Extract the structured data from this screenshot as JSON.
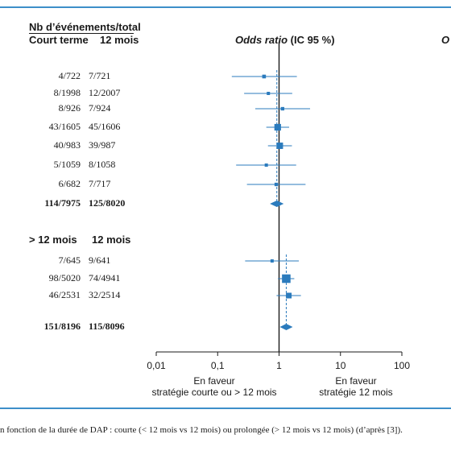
{
  "header": {
    "group_title": "Nb d’événements/total",
    "col_short": "Court terme",
    "col_long": "12 mois",
    "or_label": "Odds ratio",
    "ci_label": "(IC 95 %)",
    "right_cut": "O"
  },
  "subgroup2": {
    "col_short": "> 12 mois",
    "col_long": "12 mois"
  },
  "favor_left": [
    "En faveur",
    "stratégie courte ou > 12 mois"
  ],
  "favor_right": [
    "En faveur",
    "stratégie  12 mois"
  ],
  "caption": "n fonction de la durée de DAP : courte (< 12 mois vs 12 mois) ou prolongée (> 12 mois vs 12 mois) (d’après [3]).",
  "colors": {
    "accent": "#2b7bbd",
    "frame": "#3d8fc9"
  },
  "chart_data": {
    "type": "forest",
    "x_scale": "log",
    "xlim": [
      0.01,
      100
    ],
    "x_ticks": [
      "0,01",
      "0,1",
      "1",
      "10",
      "100"
    ],
    "x_tick_values": [
      0.01,
      0.1,
      1,
      10,
      100
    ],
    "reference_line": 1,
    "rows": [
      {
        "group": 1,
        "short": "4/722",
        "long": "7/721",
        "or": 0.57,
        "lo": 0.17,
        "hi": 1.95,
        "kind": "study"
      },
      {
        "group": 1,
        "short": "8/1998",
        "long": "12/2007",
        "or": 0.67,
        "lo": 0.27,
        "hi": 1.64,
        "kind": "study"
      },
      {
        "group": 1,
        "short": "8/926",
        "long": "7/924",
        "or": 1.14,
        "lo": 0.41,
        "hi": 3.2,
        "kind": "study"
      },
      {
        "group": 1,
        "short": "43/1605",
        "long": "45/1606",
        "or": 0.95,
        "lo": 0.62,
        "hi": 1.46,
        "kind": "study"
      },
      {
        "group": 1,
        "short": "40/983",
        "long": "39/987",
        "or": 1.03,
        "lo": 0.66,
        "hi": 1.62,
        "kind": "study"
      },
      {
        "group": 1,
        "short": "5/1059",
        "long": "8/1058",
        "or": 0.62,
        "lo": 0.2,
        "hi": 1.9,
        "kind": "study"
      },
      {
        "group": 1,
        "short": "6/682",
        "long": "7/717",
        "or": 0.9,
        "lo": 0.3,
        "hi": 2.7,
        "kind": "study"
      },
      {
        "group": 1,
        "short": "114/7975",
        "long": "125/8020",
        "or": 0.92,
        "lo": 0.71,
        "hi": 1.19,
        "kind": "summary"
      },
      {
        "group": 2,
        "short": "7/645",
        "long": "9/641",
        "or": 0.77,
        "lo": 0.28,
        "hi": 2.1,
        "kind": "study"
      },
      {
        "group": 2,
        "short": "98/5020",
        "long": "74/4941",
        "or": 1.31,
        "lo": 0.96,
        "hi": 1.77,
        "kind": "study"
      },
      {
        "group": 2,
        "short": "46/2531",
        "long": "32/2514",
        "or": 1.44,
        "lo": 0.91,
        "hi": 2.27,
        "kind": "study"
      },
      {
        "group": 2,
        "short": "151/8196",
        "long": "115/8096",
        "or": 1.31,
        "lo": 1.03,
        "hi": 1.67,
        "kind": "summary"
      }
    ],
    "pooled_or": [
      0.92,
      1.31
    ],
    "marker_size": [
      1.2,
      1.0,
      1.1,
      2.4,
      2.3,
      1.0,
      1.1,
      0,
      1.0,
      3.2,
      2.0,
      0
    ]
  }
}
